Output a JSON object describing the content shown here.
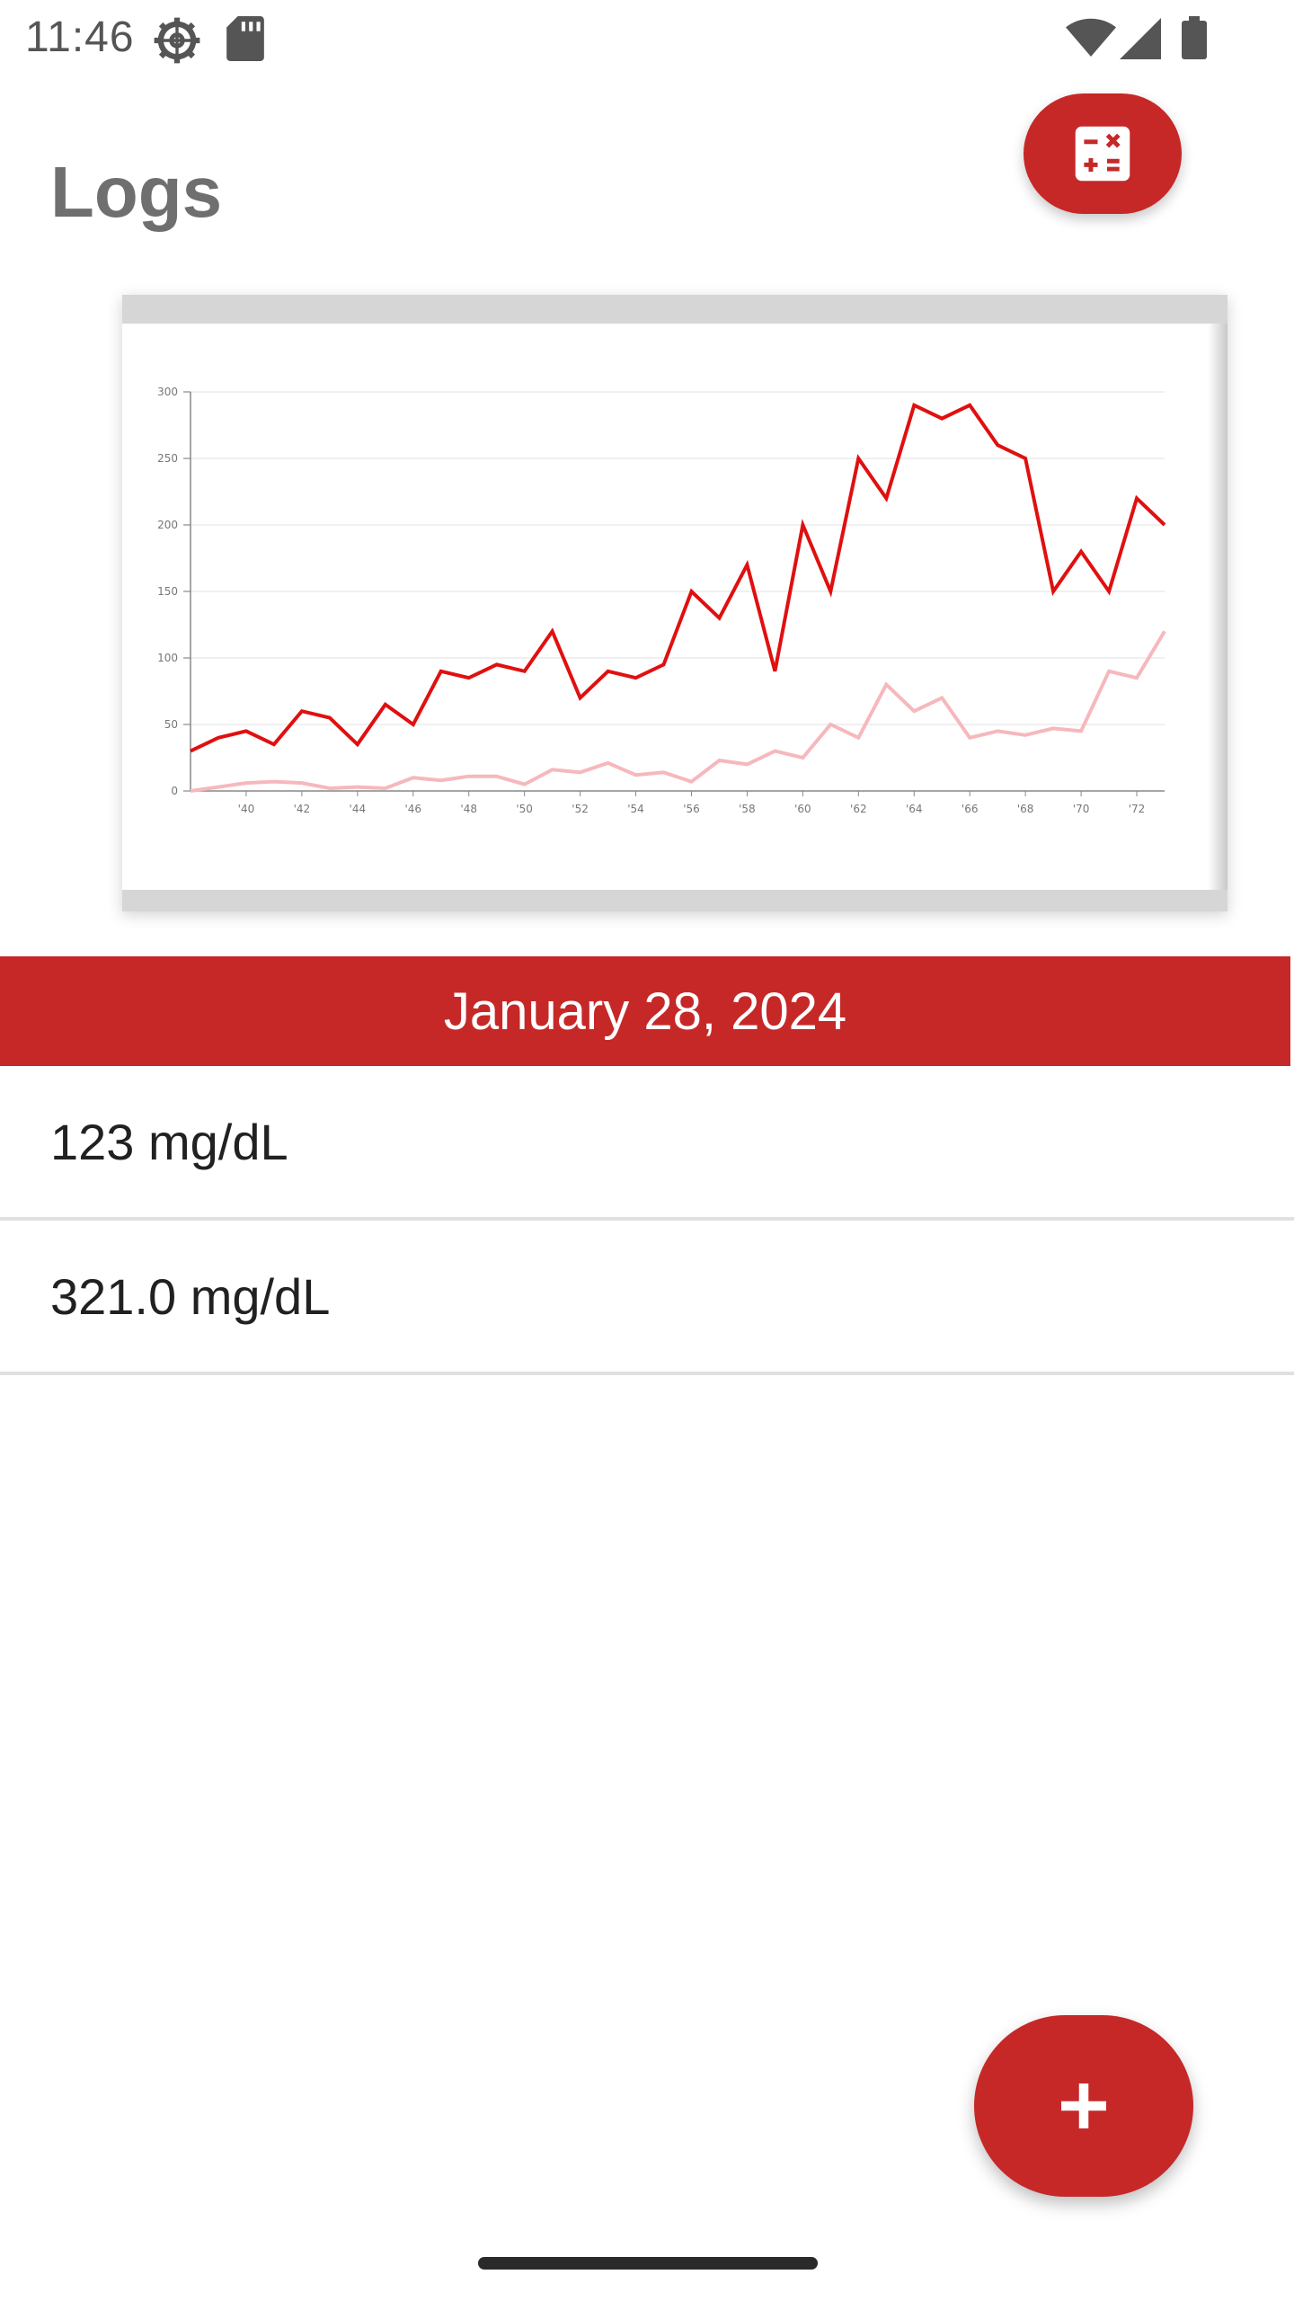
{
  "status_bar": {
    "time": "11:46",
    "icons": [
      "gear-icon",
      "sd-card-icon",
      "wifi-icon",
      "cell-signal-icon",
      "battery-icon"
    ]
  },
  "header": {
    "title": "Logs",
    "calculator_button_icon": "calculator-icon"
  },
  "chart_data": {
    "type": "line",
    "x": [
      "'38",
      "'39",
      "'40",
      "'41",
      "'42",
      "'43",
      "'44",
      "'45",
      "'46",
      "'47",
      "'48",
      "'49",
      "'50",
      "'51",
      "'52",
      "'53",
      "'54",
      "'55",
      "'56",
      "'57",
      "'58",
      "'59",
      "'60",
      "'61",
      "'62",
      "'63",
      "'64",
      "'65",
      "'66",
      "'67",
      "'68",
      "'69",
      "'70",
      "'71",
      "'72",
      "'73"
    ],
    "x_tick_labels": [
      "'40",
      "'42",
      "'44",
      "'46",
      "'48",
      "'50",
      "'52",
      "'54",
      "'56",
      "'58",
      "'60",
      "'62",
      "'64",
      "'66",
      "'68",
      "'70",
      "'72"
    ],
    "y_tick_labels": [
      "0",
      "50",
      "100",
      "150",
      "200",
      "250",
      "300"
    ],
    "ylim": [
      0,
      300
    ],
    "grid": true,
    "series": [
      {
        "color": "#e01010",
        "values": [
          30,
          40,
          45,
          35,
          60,
          55,
          35,
          65,
          50,
          90,
          85,
          95,
          90,
          120,
          70,
          90,
          85,
          95,
          150,
          130,
          170,
          90,
          200,
          150,
          250,
          220,
          290,
          280,
          290,
          260,
          250,
          150,
          180,
          150,
          220,
          200
        ]
      },
      {
        "color": "#f6b8bc",
        "values": [
          0,
          3,
          6,
          7,
          6,
          2,
          3,
          2,
          10,
          8,
          11,
          11,
          5,
          16,
          14,
          21,
          12,
          14,
          7,
          23,
          20,
          30,
          25,
          50,
          40,
          80,
          60,
          70,
          40,
          45,
          42,
          47,
          45,
          90,
          85,
          120
        ]
      }
    ]
  },
  "date_banner": {
    "text": "January 28, 2024"
  },
  "logs": [
    {
      "text": "123 mg/dL"
    },
    {
      "text": "321.0 mg/dL"
    }
  ],
  "fab": {
    "icon": "plus-icon"
  },
  "colors": {
    "accent": "#c62828",
    "title_gray": "#6f6f6f",
    "divider": "#e0e0e0"
  }
}
